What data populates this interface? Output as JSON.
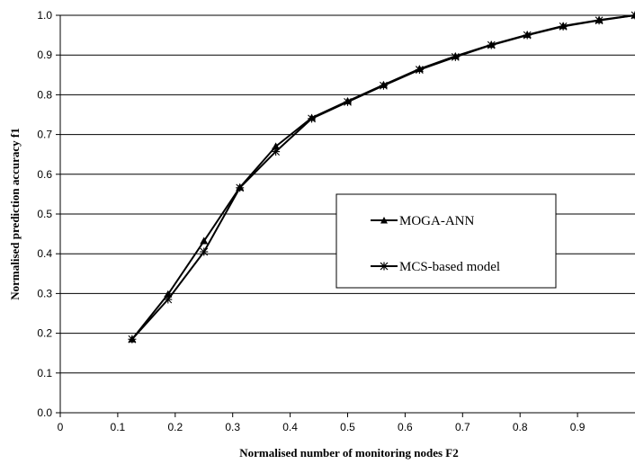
{
  "chart_data": {
    "type": "line",
    "title": "",
    "xlabel": "Normalised number of monitoring nodes F2",
    "ylabel": "Normalised prediction accuracy f1",
    "xlim": [
      0,
      1
    ],
    "ylim": [
      0,
      1
    ],
    "xticks": [
      "0",
      "0.1",
      "0.2",
      "0.3",
      "0.4",
      "0.5",
      "0.6",
      "0.7",
      "0.8",
      "0.9"
    ],
    "yticks": [
      "0.0",
      "0.1",
      "0.2",
      "0.3",
      "0.4",
      "0.5",
      "0.6",
      "0.7",
      "0.8",
      "0.9",
      "1.0"
    ],
    "grid": "horizontal",
    "legend_position": "center-right",
    "series": [
      {
        "name": "MOGA-ANN",
        "marker": "triangle",
        "color": "#000000",
        "x": [
          0.125,
          0.1875,
          0.25,
          0.3125,
          0.375,
          0.4375,
          0.5,
          0.5625,
          0.625,
          0.6875,
          0.75,
          0.8125,
          0.875,
          0.9375,
          1.0
        ],
        "y": [
          0.185,
          0.298,
          0.432,
          0.567,
          0.67,
          0.742,
          0.784,
          0.825,
          0.865,
          0.897,
          0.926,
          0.951,
          0.973,
          0.988,
          1.0
        ]
      },
      {
        "name": "MCS-based model",
        "marker": "asterisk",
        "color": "#000000",
        "x": [
          0.125,
          0.1875,
          0.25,
          0.3125,
          0.375,
          0.4375,
          0.5,
          0.5625,
          0.625,
          0.6875,
          0.75,
          0.8125,
          0.875,
          0.9375,
          1.0
        ],
        "y": [
          0.185,
          0.285,
          0.405,
          0.566,
          0.657,
          0.74,
          0.782,
          0.823,
          0.863,
          0.895,
          0.925,
          0.95,
          0.972,
          0.987,
          1.0
        ]
      }
    ]
  }
}
